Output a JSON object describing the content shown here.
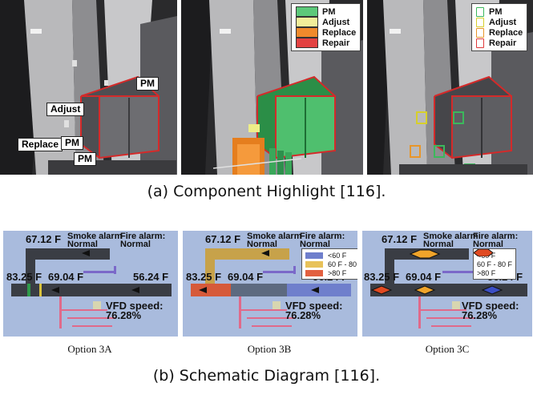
{
  "figure_a": {
    "caption": "(a) Component Highlight [116].",
    "panel1_labels": {
      "pm_top": "PM",
      "adjust": "Adjust",
      "replace": "Replace",
      "pm_mid": "PM",
      "pm_bottom": "PM"
    },
    "panel2_legend": [
      {
        "label": "PM",
        "color": "#5cc87a"
      },
      {
        "label": "Adjust",
        "color": "#f2ee9a"
      },
      {
        "label": "Replace",
        "color": "#f08a2c"
      },
      {
        "label": "Repair",
        "color": "#e34242"
      }
    ],
    "panel3_legend": [
      {
        "label": "PM",
        "color": "#3cb85c"
      },
      {
        "label": "Adjust",
        "color": "#d7cf2b"
      },
      {
        "label": "Replace",
        "color": "#e8962a"
      },
      {
        "label": "Repair",
        "color": "#e03a3a"
      }
    ]
  },
  "figure_b": {
    "caption": "(b) Schematic Diagram [116].",
    "panels": [
      {
        "subcaption": "Option 3A",
        "temp_top": "67.12 F",
        "smoke_alarm": "Smoke alarm",
        "smoke_status": "Normal",
        "fire_alarm": "Fire alarm:",
        "fire_status": "Normal",
        "temp_left": "83.25 F",
        "temp_mid": "69.04 F",
        "temp_right": "56.24 F",
        "vfd_label": "VFD speed:",
        "vfd_value": "76.28%"
      },
      {
        "subcaption": "Option 3B",
        "temp_top": "67.12 F",
        "smoke_alarm": "Smoke alarm",
        "smoke_status": "Normal",
        "fire_alarm": "Fire alarm:",
        "fire_status": "Normal",
        "temp_left": "83.25 F",
        "temp_mid": "69.04 F",
        "temp_right": "56.24 F",
        "vfd_label": "VFD speed:",
        "vfd_value": "76.28%",
        "legend": [
          {
            "label": "<60 F",
            "color": "#6f7fcc"
          },
          {
            "label": "60 F - 80 F",
            "color": "#e8c25a"
          },
          {
            "label": ">80 F",
            "color": "#e26040"
          }
        ]
      },
      {
        "subcaption": "Option 3C",
        "temp_top": "67.12 F",
        "smoke_alarm": "Smoke alarm",
        "smoke_status": "Normal",
        "fire_alarm": "Fire alarm:",
        "fire_status": "Normal",
        "temp_left": "83.25 F",
        "temp_mid": "69.04 F",
        "temp_right": "56.24 F",
        "vfd_label": "VFD speed:",
        "vfd_value": "76.28%",
        "legend": [
          {
            "label": "<60 F",
            "color": "#3c4fc4"
          },
          {
            "label": "60 F - 80 F",
            "color": "#f0a42a"
          },
          {
            "label": ">80 F",
            "color": "#e04a22"
          }
        ]
      }
    ]
  },
  "colors": {
    "schematic_bg": "#a9bbdd",
    "duct_dark": "#3a3d44",
    "highlight_red": "#d42a2a"
  }
}
